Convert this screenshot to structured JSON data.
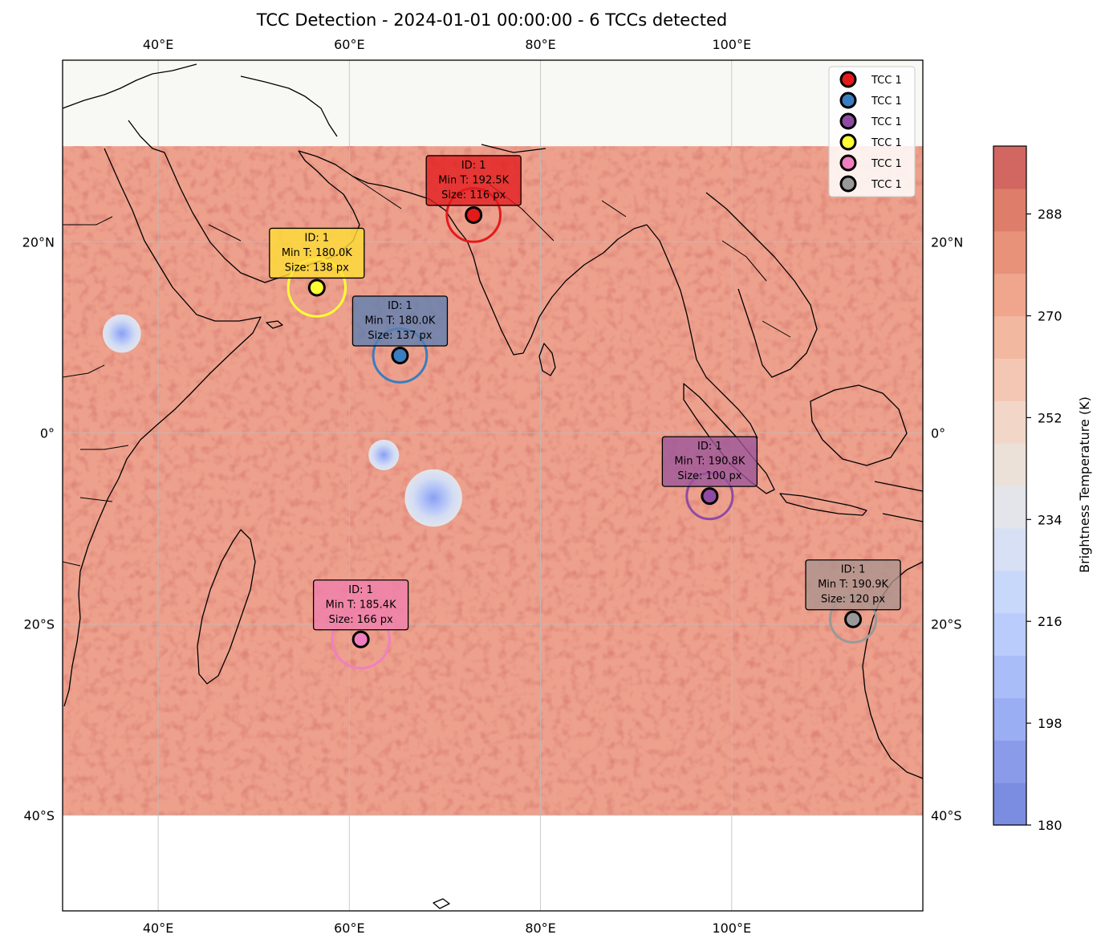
{
  "title": "TCC Detection - 2024-01-01 00:00:00 - 6 TCCs detected",
  "map": {
    "lon_range": [
      30,
      120
    ],
    "lat_range": [
      -50,
      39
    ],
    "data_lon_range": [
      30,
      120
    ],
    "data_lat_range": [
      -40,
      30
    ],
    "lon_ticks": [
      {
        "value": 40,
        "label": "40°E"
      },
      {
        "value": 60,
        "label": "60°E"
      },
      {
        "value": 80,
        "label": "80°E"
      },
      {
        "value": 100,
        "label": "100°E"
      }
    ],
    "lat_ticks": [
      {
        "value": 20,
        "label": "20°N"
      },
      {
        "value": 0,
        "label": "0°"
      },
      {
        "value": -20,
        "label": "20°S"
      },
      {
        "value": -40,
        "label": "40°S"
      }
    ],
    "grid": true,
    "background_field_color": "#eda08c",
    "no_data_land_color": "#f8f9f4",
    "cold_spots": [
      {
        "lon": 36.2,
        "lat": 10.4,
        "radius_deg": 2.0
      },
      {
        "lon": 63.6,
        "lat": -2.3,
        "radius_deg": 1.6
      },
      {
        "lon": 68.8,
        "lat": -6.8,
        "radius_deg": 3.0
      }
    ]
  },
  "colorbar": {
    "label": "Brightness Temperature (K)",
    "min": 180,
    "max": 300,
    "ticks": [
      180,
      198,
      216,
      234,
      252,
      270,
      288
    ],
    "colors": [
      "#7b8de0",
      "#8a9ce9",
      "#9aaef3",
      "#a9bef9",
      "#b9ccfc",
      "#c8d8fb",
      "#d7e0f4",
      "#e3e5ea",
      "#ece1d9",
      "#f2d6c8",
      "#f4c7b4",
      "#f3b8a0",
      "#efa68d",
      "#e8927a",
      "#de7d69",
      "#d26661"
    ]
  },
  "legend": {
    "location": "upper right",
    "entries": [
      {
        "label": "TCC 1",
        "color": "#e31a1c"
      },
      {
        "label": "TCC 1",
        "color": "#3a7dc0"
      },
      {
        "label": "TCC 1",
        "color": "#8e4ba2"
      },
      {
        "label": "TCC 1",
        "color": "#ffff33"
      },
      {
        "label": "TCC 1",
        "color": "#f17fc0"
      },
      {
        "label": "TCC 1",
        "color": "#999999"
      }
    ]
  },
  "tccs": [
    {
      "lon": 73.0,
      "lat": 22.8,
      "color": "#e31a1c",
      "ring_deg": 2.8,
      "box_color": "#e31a1c",
      "lines": [
        "ID: 1",
        "Min T: 192.5K",
        "Size: 116 px"
      ]
    },
    {
      "lon": 56.6,
      "lat": 15.2,
      "color": "#ffff33",
      "ring_deg": 3.0,
      "box_color": "#ffe033",
      "lines": [
        "ID: 1",
        "Min T: 180.0K",
        "Size: 138 px"
      ]
    },
    {
      "lon": 65.3,
      "lat": 8.1,
      "color": "#3a7dc0",
      "ring_deg": 2.8,
      "box_color": "#5a7fb2",
      "lines": [
        "ID: 1",
        "Min T: 180.0K",
        "Size: 137 px"
      ]
    },
    {
      "lon": 97.7,
      "lat": -6.6,
      "color": "#8e4ba2",
      "ring_deg": 2.4,
      "box_color": "#9a559a",
      "lines": [
        "ID: 1",
        "Min T: 190.8K",
        "Size: 100 px"
      ]
    },
    {
      "lon": 112.7,
      "lat": -19.5,
      "color": "#999999",
      "ring_deg": 2.4,
      "box_color": "#a9948e",
      "lines": [
        "ID: 1",
        "Min T: 190.9K",
        "Size: 120 px"
      ]
    },
    {
      "lon": 61.2,
      "lat": -21.6,
      "color": "#f17fc0",
      "ring_deg": 3.0,
      "box_color": "#f07fad",
      "lines": [
        "ID: 1",
        "Min T: 185.4K",
        "Size: 166 px"
      ]
    }
  ]
}
